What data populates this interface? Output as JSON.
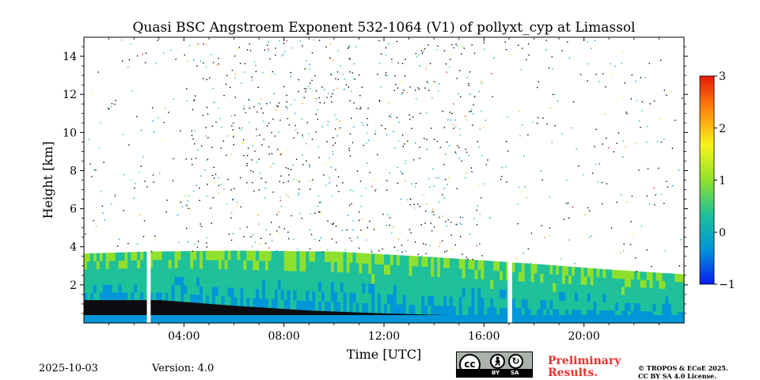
{
  "chart_data": {
    "type": "heatmap",
    "title": "Quasi BSC Angstroem Exponent 532-1064 (V1) of pollyxt_cyp at Limassol",
    "xlabel": "Time [UTC]",
    "ylabel": "Height [km]",
    "xlim_hours": [
      0,
      24
    ],
    "ylim_km": [
      0,
      15
    ],
    "x_ticks": [
      {
        "value": 4,
        "label": "04:00"
      },
      {
        "value": 8,
        "label": "08:00"
      },
      {
        "value": 12,
        "label": "12:00"
      },
      {
        "value": 16,
        "label": "16:00"
      },
      {
        "value": 20,
        "label": "20:00"
      }
    ],
    "y_ticks": [
      {
        "value": 2,
        "label": "2"
      },
      {
        "value": 4,
        "label": "4"
      },
      {
        "value": 6,
        "label": "6"
      },
      {
        "value": 8,
        "label": "8"
      },
      {
        "value": 10,
        "label": "10"
      },
      {
        "value": 12,
        "label": "12"
      },
      {
        "value": 14,
        "label": "14"
      }
    ],
    "colorbar": {
      "range": [
        -1,
        3
      ],
      "ticks": [
        {
          "value": -1,
          "label": "−1"
        },
        {
          "value": 0,
          "label": "0"
        },
        {
          "value": 1,
          "label": "1"
        },
        {
          "value": 2,
          "label": "2"
        },
        {
          "value": 3,
          "label": "3"
        }
      ],
      "colors": [
        "#0a1cf0",
        "#0096d8",
        "#1fc09a",
        "#8fe02c",
        "#f6f41c",
        "#ff8c0d",
        "#e51a0a"
      ]
    },
    "layer_top_km": [
      [
        0,
        3.65
      ],
      [
        2.5,
        3.75
      ],
      [
        6,
        3.8
      ],
      [
        10,
        3.75
      ],
      [
        14,
        3.45
      ],
      [
        18,
        3.1
      ],
      [
        21,
        2.8
      ],
      [
        24,
        2.55
      ]
    ],
    "layer_bottom_km": [
      [
        0,
        1.2
      ],
      [
        3,
        1.2
      ],
      [
        6,
        0.9
      ],
      [
        9,
        0.65
      ],
      [
        12,
        0.5
      ],
      [
        15,
        0.4
      ],
      [
        18,
        0.3
      ],
      [
        24,
        0.2
      ]
    ],
    "data_gaps_hours": [
      [
        2.52,
        2.67
      ],
      [
        16.95,
        17.08
      ]
    ],
    "typical_layer_value": 0.2
  },
  "footer": {
    "date": "2025-10-03",
    "version": "Version: 4.0",
    "preliminary_line1": "Preliminary",
    "preliminary_line2": "Results.",
    "license_line1": "© TROPOS & ECoE 2025.",
    "license_line2": "CC BY SA 4.0 License.",
    "cc_badge": {
      "cc": "cc",
      "by": "BY",
      "sa": "SA"
    }
  }
}
